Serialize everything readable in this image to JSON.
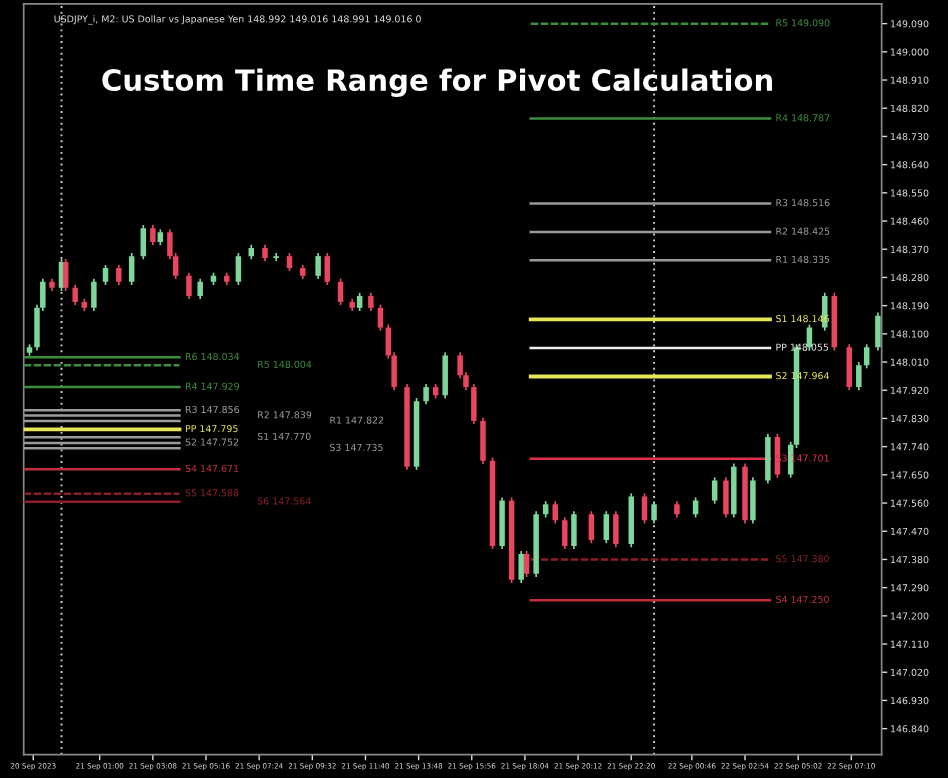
{
  "chart_data": {
    "type": "candlestick",
    "title": "Custom Time Range for Pivot Calculation",
    "annotations": [
      "USDJPY_i, M2: US Dollar vs Japanese Yen 148.992 149.016 148.991 149.016 0"
    ],
    "x": [
      "2023-09-20T22:11",
      "2023-09-20T22:29",
      "2023-09-20T22:43",
      "2023-09-20T23:05",
      "2023-09-20T23:28",
      "2023-09-20T23:38",
      "2023-09-21T00:01",
      "2023-09-21T00:23",
      "2023-09-21T00:46",
      "2023-09-21T01:14",
      "2023-09-21T01:46",
      "2023-09-21T02:17",
      "2023-09-21T02:45",
      "2023-09-21T03:08",
      "2023-09-21T03:26",
      "2023-09-21T03:49",
      "2023-09-21T04:03",
      "2023-09-21T04:35",
      "2023-09-21T05:02",
      "2023-09-21T05:34",
      "2023-09-21T06:06",
      "2023-09-21T06:34",
      "2023-09-21T07:05",
      "2023-09-21T07:38",
      "2023-09-21T08:05",
      "2023-09-21T08:37",
      "2023-09-21T09:09",
      "2023-09-21T09:46",
      "2023-09-21T10:08",
      "2023-09-21T10:40",
      "2023-09-21T11:08",
      "2023-09-21T11:26",
      "2023-09-21T11:53",
      "2023-09-21T12:16",
      "2023-09-21T12:35",
      "2023-09-21T12:49",
      "2023-09-21T13:20",
      "2023-09-21T13:43",
      "2023-09-21T14:06",
      "2023-09-21T14:29",
      "2023-09-21T14:52",
      "2023-09-21T15:28",
      "2023-09-21T15:42",
      "2023-09-21T16:01",
      "2023-09-21T16:23",
      "2023-09-21T16:46",
      "2023-09-21T17:09",
      "2023-09-21T17:32",
      "2023-09-21T17:55",
      "2023-09-21T18:08",
      "2023-09-21T18:31",
      "2023-09-21T18:54",
      "2023-09-21T19:17",
      "2023-09-21T19:40",
      "2023-09-21T20:02",
      "2023-09-21T20:44",
      "2023-09-21T21:20",
      "2023-09-21T21:43",
      "2023-09-21T22:20",
      "2023-09-21T22:52",
      "2023-09-21T23:15",
      "2023-09-22T00:10",
      "2023-09-22T00:55",
      "2023-09-22T01:41",
      "2023-09-22T02:08",
      "2023-09-22T02:27",
      "2023-09-22T02:54",
      "2023-09-22T03:13",
      "2023-09-22T03:49",
      "2023-09-22T04:12",
      "2023-09-22T04:44",
      "2023-09-22T04:58",
      "2023-09-22T05:29",
      "2023-09-22T06:06",
      "2023-09-22T06:29",
      "2023-09-22T07:05",
      "2023-09-22T07:28",
      "2023-09-22T07:47",
      "2023-09-22T08:14"
    ],
    "ohlc": [
      [
        148.04,
        148.067,
        148.03,
        148.057
      ],
      [
        148.057,
        148.193,
        148.047,
        148.183
      ],
      [
        148.183,
        148.276,
        148.173,
        148.266
      ],
      [
        148.266,
        148.276,
        148.237,
        148.247
      ],
      [
        148.247,
        148.339,
        148.237,
        148.329
      ],
      [
        148.329,
        148.339,
        148.237,
        148.247
      ],
      [
        148.247,
        148.257,
        148.192,
        148.202
      ],
      [
        148.202,
        148.212,
        148.173,
        148.183
      ],
      [
        148.183,
        148.276,
        148.173,
        148.266
      ],
      [
        148.266,
        148.32,
        148.256,
        148.31
      ],
      [
        148.31,
        148.32,
        148.256,
        148.266
      ],
      [
        148.266,
        148.358,
        148.256,
        148.348
      ],
      [
        148.348,
        148.447,
        148.338,
        148.437
      ],
      [
        148.437,
        148.447,
        148.383,
        148.393
      ],
      [
        148.393,
        148.434,
        148.383,
        148.424
      ],
      [
        148.424,
        148.434,
        148.338,
        148.348
      ],
      [
        148.348,
        148.358,
        148.275,
        148.285
      ],
      [
        148.285,
        148.295,
        148.211,
        148.221
      ],
      [
        148.221,
        148.276,
        148.211,
        148.266
      ],
      [
        148.266,
        148.295,
        148.256,
        148.285
      ],
      [
        148.285,
        148.295,
        148.256,
        148.266
      ],
      [
        148.266,
        148.358,
        148.256,
        148.348
      ],
      [
        148.348,
        148.384,
        148.338,
        148.374
      ],
      [
        148.374,
        148.384,
        148.332,
        148.342
      ],
      [
        148.342,
        148.358,
        148.332,
        148.348
      ],
      [
        148.348,
        148.358,
        148.3,
        148.31
      ],
      [
        148.31,
        148.32,
        148.275,
        148.285
      ],
      [
        148.285,
        148.358,
        148.275,
        148.348
      ],
      [
        148.348,
        148.358,
        148.256,
        148.266
      ],
      [
        148.266,
        148.276,
        148.192,
        148.202
      ],
      [
        148.202,
        148.212,
        148.173,
        148.183
      ],
      [
        148.183,
        148.231,
        148.173,
        148.221
      ],
      [
        148.221,
        148.231,
        148.173,
        148.183
      ],
      [
        148.183,
        148.193,
        148.11,
        148.12
      ],
      [
        148.12,
        148.13,
        148.021,
        148.031
      ],
      [
        148.031,
        148.041,
        147.92,
        147.93
      ],
      [
        147.93,
        147.94,
        147.666,
        147.676
      ],
      [
        147.676,
        147.895,
        147.666,
        147.885
      ],
      [
        147.885,
        147.94,
        147.875,
        147.93
      ],
      [
        147.93,
        147.94,
        147.894,
        147.904
      ],
      [
        147.904,
        148.041,
        147.894,
        148.031
      ],
      [
        148.031,
        148.041,
        147.958,
        147.968
      ],
      [
        147.968,
        147.978,
        147.92,
        147.93
      ],
      [
        147.93,
        147.94,
        147.812,
        147.822
      ],
      [
        147.822,
        147.832,
        147.685,
        147.695
      ],
      [
        147.695,
        147.705,
        147.413,
        147.423
      ],
      [
        147.423,
        147.578,
        147.413,
        147.568
      ],
      [
        147.568,
        147.578,
        147.305,
        147.315
      ],
      [
        147.315,
        147.407,
        147.305,
        147.397
      ],
      [
        147.397,
        147.407,
        147.324,
        147.334
      ],
      [
        147.334,
        147.534,
        147.324,
        147.524
      ],
      [
        147.524,
        147.566,
        147.514,
        147.556
      ],
      [
        147.556,
        147.566,
        147.495,
        147.505
      ],
      [
        147.505,
        147.515,
        147.413,
        147.423
      ],
      [
        147.423,
        147.534,
        147.413,
        147.524
      ],
      [
        147.524,
        147.534,
        147.432,
        147.442
      ],
      [
        147.442,
        147.534,
        147.432,
        147.524
      ],
      [
        147.524,
        147.534,
        147.419,
        147.429
      ],
      [
        147.429,
        147.591,
        147.419,
        147.581
      ],
      [
        147.581,
        147.591,
        147.495,
        147.505
      ],
      [
        147.505,
        147.566,
        147.495,
        147.556
      ],
      [
        147.556,
        147.566,
        147.514,
        147.524
      ],
      [
        147.524,
        147.578,
        147.514,
        147.568
      ],
      [
        147.568,
        147.642,
        147.558,
        147.632
      ],
      [
        147.632,
        147.642,
        147.514,
        147.524
      ],
      [
        147.524,
        147.686,
        147.514,
        147.676
      ],
      [
        147.676,
        147.686,
        147.495,
        147.505
      ],
      [
        147.505,
        147.642,
        147.495,
        147.632
      ],
      [
        147.632,
        147.781,
        147.622,
        147.771
      ],
      [
        147.771,
        147.781,
        147.641,
        147.651
      ],
      [
        147.651,
        147.756,
        147.641,
        147.746
      ],
      [
        147.746,
        148.067,
        147.736,
        148.057
      ],
      [
        148.057,
        148.13,
        148.047,
        148.12
      ],
      [
        148.12,
        148.231,
        148.11,
        148.221
      ],
      [
        148.221,
        148.231,
        148.047,
        148.057
      ],
      [
        148.057,
        148.067,
        147.92,
        147.93
      ],
      [
        147.93,
        148.01,
        147.92,
        148.0
      ],
      [
        148.0,
        148.067,
        147.99,
        148.057
      ],
      [
        148.057,
        148.168,
        148.047,
        148.158
      ]
    ],
    "colors": [
      "#7ed69a",
      "#7ed69a",
      "#7ed69a",
      "#e8455f",
      "#7ed69a",
      "#e8455f",
      "#e8455f",
      "#e8455f",
      "#7ed69a",
      "#7ed69a",
      "#e8455f",
      "#7ed69a",
      "#7ed69a",
      "#e8455f",
      "#7ed69a",
      "#e8455f",
      "#e8455f",
      "#e8455f",
      "#7ed69a",
      "#7ed69a",
      "#e8455f",
      "#7ed69a",
      "#7ed69a",
      "#e8455f",
      "#7ed69a",
      "#e8455f",
      "#e8455f",
      "#7ed69a",
      "#e8455f",
      "#e8455f",
      "#e8455f",
      "#7ed69a",
      "#e8455f",
      "#e8455f",
      "#e8455f",
      "#e8455f",
      "#e8455f",
      "#7ed69a",
      "#7ed69a",
      "#e8455f",
      "#7ed69a",
      "#e8455f",
      "#e8455f",
      "#e8455f",
      "#e8455f",
      "#e8455f",
      "#7ed69a",
      "#e8455f",
      "#7ed69a",
      "#e8455f",
      "#7ed69a",
      "#7ed69a",
      "#e8455f",
      "#e8455f",
      "#7ed69a",
      "#e8455f",
      "#7ed69a",
      "#e8455f",
      "#7ed69a",
      "#e8455f",
      "#7ed69a",
      "#e8455f",
      "#7ed69a",
      "#7ed69a",
      "#e8455f",
      "#7ed69a",
      "#e8455f",
      "#7ed69a",
      "#7ed69a",
      "#e8455f",
      "#7ed69a",
      "#7ed69a",
      "#7ed69a",
      "#7ed69a",
      "#e8455f",
      "#e8455f",
      "#7ed69a",
      "#7ed69a",
      "#7ed69a"
    ],
    "series": [
      {
        "type": "line",
        "name": "R6 148.034",
        "color": "#3e8e3e",
        "line_style": "solid",
        "x": [
          "2023-09-20T21:57",
          "2023-09-21T04:12"
        ],
        "values": [
          148.025,
          148.025
        ]
      },
      {
        "type": "line",
        "name": "R5 148.004",
        "color": "#3e8e3e",
        "line_style": "dashed",
        "x": [
          "2023-09-20T21:57",
          "2023-09-21T04:12"
        ],
        "values": [
          148.0,
          148.0
        ]
      },
      {
        "type": "line",
        "name": "R4 147.929",
        "color": "#3e8e3e",
        "line_style": "solid",
        "x": [
          "2023-09-20T21:57",
          "2023-09-21T04:12"
        ],
        "values": [
          147.93,
          147.93
        ]
      },
      {
        "type": "line",
        "name": "R3 147.856",
        "color": "#9a9a9a",
        "line_style": "solid",
        "x": [
          "2023-09-20T21:57",
          "2023-09-21T04:12"
        ],
        "values": [
          147.856,
          147.856
        ]
      },
      {
        "type": "line",
        "name": "R2 147.839",
        "color": "#9a9a9a",
        "line_style": "solid",
        "x": [
          "2023-09-20T21:57",
          "2023-09-21T04:12"
        ],
        "values": [
          147.839,
          147.839
        ]
      },
      {
        "type": "line",
        "name": "R1 147.822",
        "color": "#9a9a9a",
        "line_style": "solid",
        "x": [
          "2023-09-20T21:57",
          "2023-09-21T04:12"
        ],
        "values": [
          147.822,
          147.822
        ]
      },
      {
        "type": "line",
        "name": "PP 147.795",
        "color": "#e6e65a",
        "line_style": "solid",
        "x": [
          "2023-09-20T21:57",
          "2023-09-21T04:12"
        ],
        "values": [
          147.795,
          147.795
        ]
      },
      {
        "type": "line",
        "name": "S1 147.770",
        "color": "#9a9a9a",
        "line_style": "solid",
        "x": [
          "2023-09-20T21:57",
          "2023-09-21T04:12"
        ],
        "values": [
          147.77,
          147.77
        ]
      },
      {
        "type": "line",
        "name": "S2 147.752",
        "color": "#9a9a9a",
        "line_style": "solid",
        "x": [
          "2023-09-20T21:57",
          "2023-09-21T04:12"
        ],
        "values": [
          147.752,
          147.752
        ]
      },
      {
        "type": "line",
        "name": "S3 147.735",
        "color": "#9a9a9a",
        "line_style": "solid",
        "x": [
          "2023-09-20T21:57",
          "2023-09-21T04:12"
        ],
        "values": [
          147.735,
          147.735
        ]
      },
      {
        "type": "line",
        "name": "S4 147.671",
        "color": "#c0303a",
        "line_style": "solid",
        "x": [
          "2023-09-20T21:57",
          "2023-09-21T04:12"
        ],
        "values": [
          147.668,
          147.668
        ]
      },
      {
        "type": "line",
        "name": "S5 147.588",
        "color": "#8a1f2a",
        "line_style": "dashed",
        "x": [
          "2023-09-20T21:57",
          "2023-09-21T04:12"
        ],
        "values": [
          147.59,
          147.59
        ]
      },
      {
        "type": "line",
        "name": "S6 147.564",
        "color": "#8a1f2a",
        "line_style": "solid",
        "x": [
          "2023-09-20T21:57",
          "2023-09-21T04:12"
        ],
        "values": [
          147.564,
          147.564
        ]
      },
      {
        "type": "line",
        "name": "R5 149.090",
        "color": "#3e8e3e",
        "line_style": "dashed",
        "x": [
          "2023-09-21T18:18",
          "2023-09-22T03:54"
        ],
        "values": [
          149.09,
          149.09
        ]
      },
      {
        "type": "line",
        "name": "R4 148.787",
        "color": "#3e8e3e",
        "line_style": "solid",
        "x": [
          "2023-09-21T18:18",
          "2023-09-22T03:54"
        ],
        "values": [
          148.787,
          148.787
        ]
      },
      {
        "type": "line",
        "name": "R3 148.516",
        "color": "#9a9a9a",
        "line_style": "solid",
        "x": [
          "2023-09-21T18:18",
          "2023-09-22T03:54"
        ],
        "values": [
          148.516,
          148.516
        ]
      },
      {
        "type": "line",
        "name": "R2 148.425",
        "color": "#9a9a9a",
        "line_style": "solid",
        "x": [
          "2023-09-21T18:18",
          "2023-09-22T03:54"
        ],
        "values": [
          148.425,
          148.425
        ]
      },
      {
        "type": "line",
        "name": "R1 148.335",
        "color": "#9a9a9a",
        "line_style": "solid",
        "x": [
          "2023-09-21T18:18",
          "2023-09-22T03:54"
        ],
        "values": [
          148.335,
          148.335
        ]
      },
      {
        "type": "line",
        "name": "S1 148.146",
        "color": "#e6e65a",
        "line_style": "solid",
        "x": [
          "2023-09-21T18:18",
          "2023-09-22T03:54"
        ],
        "values": [
          148.146,
          148.146
        ]
      },
      {
        "type": "line",
        "name": "PP 148.055",
        "color": "#eeeeee",
        "line_style": "solid",
        "x": [
          "2023-09-21T18:18",
          "2023-09-22T03:54"
        ],
        "values": [
          148.055,
          148.055
        ]
      },
      {
        "type": "line",
        "name": "S2 147.964",
        "color": "#e6e65a",
        "line_style": "solid",
        "x": [
          "2023-09-21T18:18",
          "2023-09-22T03:54"
        ],
        "values": [
          147.964,
          147.964
        ]
      },
      {
        "type": "line",
        "name": "S3 147.701",
        "color": "#e0304a",
        "line_style": "solid",
        "x": [
          "2023-09-21T18:18",
          "2023-09-22T03:54"
        ],
        "values": [
          147.701,
          147.701
        ]
      },
      {
        "type": "line",
        "name": "S5 147.380",
        "color": "#8a1f2a",
        "line_style": "dashed",
        "x": [
          "2023-09-21T18:18",
          "2023-09-22T03:54"
        ],
        "values": [
          147.38,
          147.38
        ]
      },
      {
        "type": "line",
        "name": "S4 147.250",
        "color": "#c0303a",
        "line_style": "solid",
        "x": [
          "2023-09-21T18:18",
          "2023-09-22T03:54"
        ],
        "values": [
          147.25,
          147.25
        ]
      }
    ],
    "ref_lines": [
      {
        "axis": "x",
        "value": "2023-09-20T23:28",
        "color": "#cccccc",
        "line_style": "dotted"
      },
      {
        "axis": "x",
        "value": "2023-09-21T23:15",
        "color": "#cccccc",
        "line_style": "dotted"
      }
    ],
    "xlim": [
      "2023-09-20T21:57",
      "2023-09-22T08:23"
    ],
    "xticks": [
      {
        "value": "2023-09-20T22:20",
        "label": "20 Sep 2023"
      },
      {
        "value": "2023-09-21T01:00",
        "label": "21 Sep 01:00"
      },
      {
        "value": "2023-09-21T03:08",
        "label": "21 Sep 03:08"
      },
      {
        "value": "2023-09-21T05:16",
        "label": "21 Sep 05:16"
      },
      {
        "value": "2023-09-21T07:24",
        "label": "21 Sep 07:24"
      },
      {
        "value": "2023-09-21T09:32",
        "label": "21 Sep 09:32"
      },
      {
        "value": "2023-09-21T11:40",
        "label": "21 Sep 11:40"
      },
      {
        "value": "2023-09-21T13:48",
        "label": "21 Sep 13:48"
      },
      {
        "value": "2023-09-21T15:56",
        "label": "21 Sep 15:56"
      },
      {
        "value": "2023-09-21T18:04",
        "label": "21 Sep 18:04"
      },
      {
        "value": "2023-09-21T20:12",
        "label": "21 Sep 20:12"
      },
      {
        "value": "2023-09-21T22:20",
        "label": "21 Sep 22:20"
      },
      {
        "value": "2023-09-22T00:46",
        "label": "22 Sep 00:46"
      },
      {
        "value": "2023-09-22T02:54",
        "label": "22 Sep 02:54"
      },
      {
        "value": "2023-09-22T05:02",
        "label": "22 Sep 05:02"
      },
      {
        "value": "2023-09-22T07:10",
        "label": "22 Sep 07:10"
      }
    ],
    "ylim": [
      146.757,
      149.153
    ],
    "yticks": [
      {
        "value": 146.84,
        "label": "146.840"
      },
      {
        "value": 146.93,
        "label": "146.930"
      },
      {
        "value": 147.02,
        "label": "147.020"
      },
      {
        "value": 147.11,
        "label": "147.110"
      },
      {
        "value": 147.2,
        "label": "147.200"
      },
      {
        "value": 147.29,
        "label": "147.290"
      },
      {
        "value": 147.38,
        "label": "147.380"
      },
      {
        "value": 147.47,
        "label": "147.470"
      },
      {
        "value": 147.56,
        "label": "147.560"
      },
      {
        "value": 147.65,
        "label": "147.650"
      },
      {
        "value": 147.74,
        "label": "147.740"
      },
      {
        "value": 147.83,
        "label": "147.830"
      },
      {
        "value": 147.92,
        "label": "147.920"
      },
      {
        "value": 148.01,
        "label": "148.010"
      },
      {
        "value": 148.1,
        "label": "148.100"
      },
      {
        "value": 148.19,
        "label": "148.190"
      },
      {
        "value": 148.28,
        "label": "148.280"
      },
      {
        "value": 148.37,
        "label": "148.370"
      },
      {
        "value": 148.46,
        "label": "148.460"
      },
      {
        "value": 148.55,
        "label": "148.550"
      },
      {
        "value": 148.64,
        "label": "148.640"
      },
      {
        "value": 148.73,
        "label": "148.730"
      },
      {
        "value": 148.82,
        "label": "148.820"
      },
      {
        "value": 148.91,
        "label": "148.910"
      },
      {
        "value": 149.0,
        "label": "149.000"
      },
      {
        "value": 149.09,
        "label": "149.090"
      }
    ]
  }
}
